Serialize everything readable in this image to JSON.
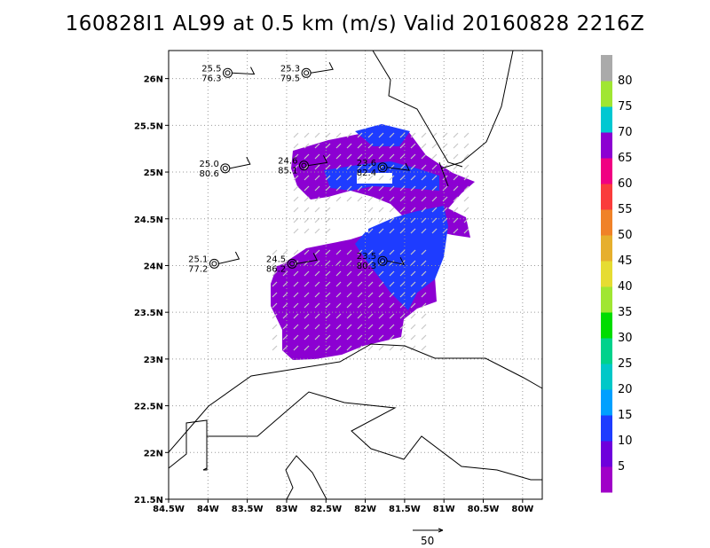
{
  "title": "160828I1 AL99 at 0.5 km (m/s) Valid 20160828 2216Z",
  "map": {
    "lon_range": [
      -84.5,
      -79.75
    ],
    "lat_range": [
      21.5,
      26.3
    ],
    "x_ticks": [
      "84.5W",
      "84W",
      "83.5W",
      "83W",
      "82.5W",
      "82W",
      "81.5W",
      "81W",
      "80.5W",
      "80W"
    ],
    "x_tick_values": [
      -84.5,
      -84.0,
      -83.5,
      -83.0,
      -82.5,
      -82.0,
      -81.5,
      -81.0,
      -80.5,
      -80.0
    ],
    "y_ticks": [
      "21.5N",
      "22N",
      "22.5N",
      "23N",
      "23.5N",
      "24N",
      "24.5N",
      "25N",
      "25.5N",
      "26N"
    ],
    "y_tick_values": [
      21.5,
      22.0,
      22.5,
      23.0,
      23.5,
      24.0,
      24.5,
      25.0,
      25.5,
      26.0
    ],
    "grid": "dotted"
  },
  "observations": [
    {
      "lon": -83.75,
      "lat": 26.06,
      "top": "25.5",
      "bottom": "76.3"
    },
    {
      "lon": -82.75,
      "lat": 26.06,
      "top": "25.3",
      "bottom": "79.5"
    },
    {
      "lon": -83.78,
      "lat": 25.04,
      "top": "25.0",
      "bottom": "80.6"
    },
    {
      "lon": -82.78,
      "lat": 25.07,
      "top": "24.6",
      "bottom": "85.1"
    },
    {
      "lon": -81.78,
      "lat": 25.05,
      "top": "23.6",
      "bottom": "82.4"
    },
    {
      "lon": -83.92,
      "lat": 24.02,
      "top": "25.1",
      "bottom": "77.2"
    },
    {
      "lon": -82.93,
      "lat": 24.02,
      "top": "24.5",
      "bottom": "86.2"
    },
    {
      "lon": -81.78,
      "lat": 24.05,
      "top": "23.5",
      "bottom": "80.3"
    }
  ],
  "colorbar": {
    "labels": [
      "5",
      "10",
      "15",
      "20",
      "25",
      "30",
      "35",
      "40",
      "45",
      "50",
      "55",
      "60",
      "65",
      "70",
      "75",
      "80"
    ],
    "colors": [
      "#a000c8",
      "#6e00dc",
      "#1e3cff",
      "#00a0ff",
      "#00c8c8",
      "#00d28c",
      "#00dc00",
      "#a0e632",
      "#e6dc32",
      "#e6af2d",
      "#f08228",
      "#fa3c3c",
      "#f00082",
      "#8c00d2",
      "#00c8d2",
      "#a0e632",
      "#aaaaaa"
    ]
  },
  "reference_vector": {
    "label": "50"
  },
  "wind_field": {
    "colors": {
      "purple": "#8c00d2",
      "blue": "#1e3cff",
      "arrow": "#c8c8c8"
    }
  }
}
